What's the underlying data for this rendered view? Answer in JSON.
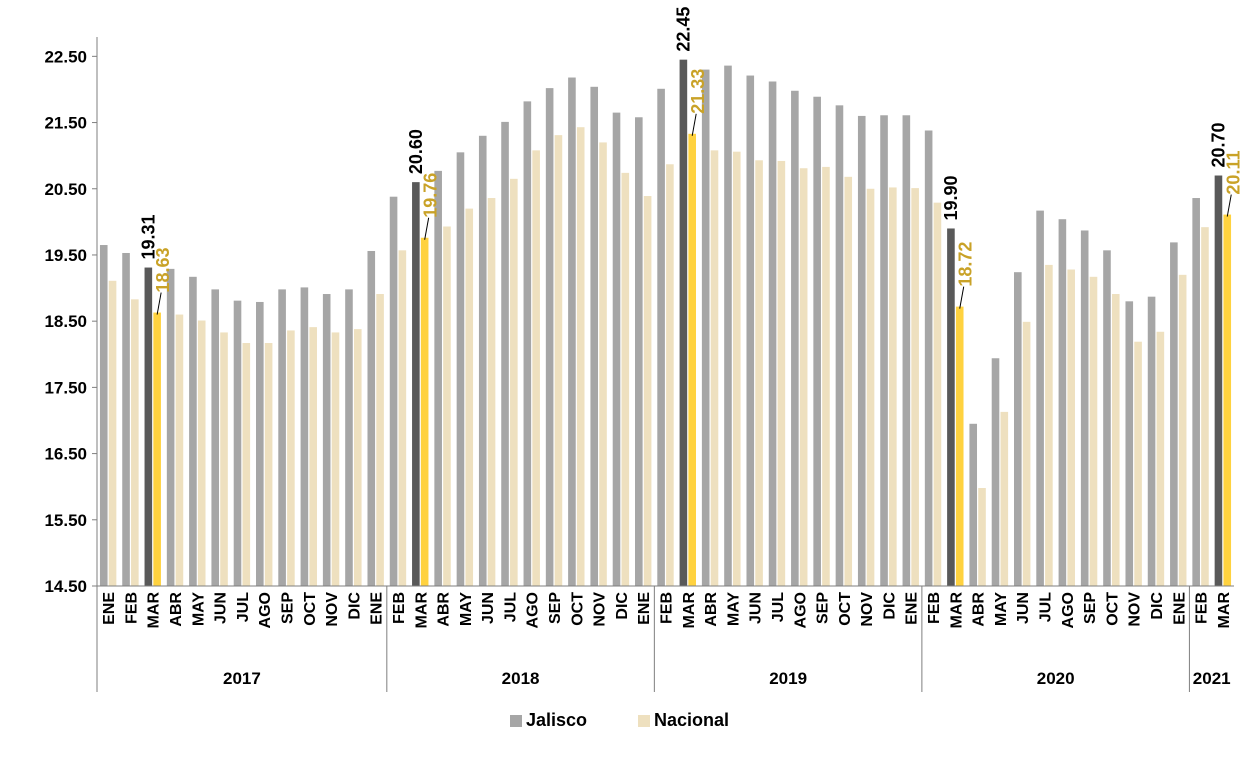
{
  "chart_data": {
    "type": "bar",
    "title": "",
    "xlabel": "",
    "ylabel": "",
    "ylim": [
      14.5,
      23.2
    ],
    "yticks": [
      "14.50",
      "15.50",
      "16.50",
      "17.50",
      "18.50",
      "19.50",
      "20.50",
      "21.50",
      "22.50"
    ],
    "grid": false,
    "legend_position": "bottom",
    "categories": [
      "ENE",
      "FEB",
      "MAR",
      "ABR",
      "MAY",
      "JUN",
      "JUL",
      "AGO",
      "SEP",
      "OCT",
      "NOV",
      "DIC",
      "ENE",
      "FEB",
      "MAR",
      "ABR",
      "MAY",
      "JUN",
      "JUL",
      "AGO",
      "SEP",
      "OCT",
      "NOV",
      "DIC",
      "ENE",
      "FEB",
      "MAR",
      "ABR",
      "MAY",
      "JUN",
      "JUL",
      "AGO",
      "SEP",
      "OCT",
      "NOV",
      "DIC",
      "ENE",
      "FEB",
      "MAR",
      "ABR",
      "MAY",
      "JUN",
      "JUL",
      "AGO",
      "SEP",
      "OCT",
      "NOV",
      "DIC",
      "ENE",
      "FEB",
      "MAR"
    ],
    "year_groups": [
      {
        "label": "2017",
        "start": 0,
        "end": 13
      },
      {
        "label": "2018",
        "start": 13,
        "end": 25
      },
      {
        "label": "2019",
        "start": 25,
        "end": 37
      },
      {
        "label": "2020",
        "start": 37,
        "end": 49
      },
      {
        "label": "2021",
        "start": 49,
        "end": 51
      }
    ],
    "highlight_indices": [
      2,
      14,
      26,
      38,
      50
    ],
    "series": [
      {
        "name": "Jalisco",
        "color": "#a6a6a6",
        "highlight_color": "#595959",
        "label_color": "#000000",
        "values": [
          19.65,
          19.53,
          19.31,
          19.29,
          19.17,
          18.98,
          18.81,
          18.79,
          18.98,
          19.01,
          18.91,
          18.98,
          19.56,
          20.38,
          20.6,
          20.77,
          21.05,
          21.3,
          21.51,
          21.82,
          22.02,
          22.18,
          22.04,
          21.65,
          21.58,
          22.01,
          22.45,
          22.3,
          22.36,
          22.21,
          22.12,
          21.98,
          21.89,
          21.76,
          21.6,
          21.61,
          21.61,
          21.38,
          19.9,
          16.95,
          17.94,
          19.24,
          20.17,
          20.04,
          19.87,
          19.57,
          18.8,
          18.87,
          19.69,
          20.36,
          20.7
        ]
      },
      {
        "name": "Nacional",
        "color": "#eee0bf",
        "highlight_color": "#ffd23f",
        "label_color": "#c9a227",
        "values": [
          19.11,
          18.83,
          18.63,
          18.6,
          18.51,
          18.33,
          18.17,
          18.17,
          18.36,
          18.41,
          18.33,
          18.38,
          18.91,
          19.57,
          19.76,
          19.93,
          20.2,
          20.36,
          20.65,
          21.08,
          21.31,
          21.43,
          21.2,
          20.74,
          20.39,
          20.87,
          21.33,
          21.08,
          21.06,
          20.93,
          20.92,
          20.81,
          20.83,
          20.68,
          20.5,
          20.52,
          20.51,
          20.29,
          18.72,
          15.98,
          17.13,
          18.49,
          19.35,
          19.28,
          19.17,
          18.91,
          18.19,
          18.34,
          19.2,
          19.92,
          20.11
        ]
      }
    ],
    "data_labels": [
      {
        "index": 2,
        "jalisco": "19.31",
        "nacional": "18.63"
      },
      {
        "index": 14,
        "jalisco": "20.60",
        "nacional": "19.76"
      },
      {
        "index": 26,
        "jalisco": "22.45",
        "nacional": "21.33"
      },
      {
        "index": 38,
        "jalisco": "19.90",
        "nacional": "18.72"
      },
      {
        "index": 50,
        "jalisco": "20.70",
        "nacional": "20.11"
      }
    ]
  }
}
